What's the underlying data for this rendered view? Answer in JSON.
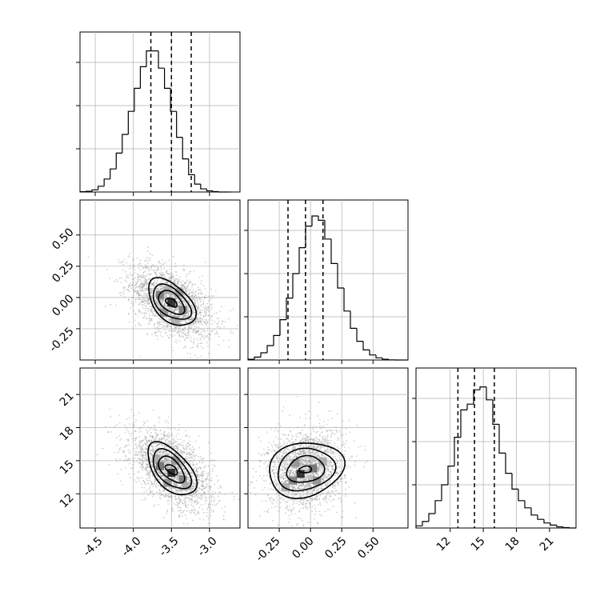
{
  "colors": {
    "ink": "#000000",
    "grid": "#b0b0b0",
    "scatter": "#9a9a9a",
    "background": "#ffffff"
  },
  "chart_data": [
    {
      "type": "histogram",
      "panel": "marginal-1",
      "xlim": [
        -4.7,
        -2.6
      ],
      "bins": {
        "start": -4.7,
        "width": 0.0792,
        "counts": [
          0.002,
          0.005,
          0.015,
          0.04,
          0.09,
          0.16,
          0.27,
          0.4,
          0.56,
          0.72,
          0.87,
          0.98,
          0.98,
          0.86,
          0.72,
          0.56,
          0.38,
          0.23,
          0.12,
          0.055,
          0.022,
          0.008,
          0.003,
          0.0,
          0.0
        ]
      },
      "quantiles": [
        -3.77,
        -3.5,
        -3.24
      ],
      "grid": true
    },
    {
      "type": "histogram",
      "panel": "marginal-2",
      "xlim": [
        -0.5,
        0.78
      ],
      "bins": {
        "start": -0.5,
        "width": 0.0512,
        "counts": [
          0.005,
          0.02,
          0.05,
          0.1,
          0.17,
          0.28,
          0.43,
          0.6,
          0.78,
          0.93,
          1.0,
          0.97,
          0.84,
          0.67,
          0.5,
          0.34,
          0.22,
          0.13,
          0.07,
          0.035,
          0.015,
          0.005,
          0.001,
          0.0,
          0.0
        ]
      },
      "quantiles": [
        -0.18,
        -0.04,
        0.1
      ],
      "grid": true
    },
    {
      "type": "histogram",
      "panel": "marginal-3",
      "xlim": [
        8.9,
        23.4
      ],
      "bins": {
        "start": 8.9,
        "width": 0.58,
        "counts": [
          0.015,
          0.045,
          0.1,
          0.19,
          0.3,
          0.43,
          0.63,
          0.82,
          0.86,
          0.96,
          0.98,
          0.89,
          0.72,
          0.52,
          0.38,
          0.27,
          0.19,
          0.14,
          0.09,
          0.06,
          0.035,
          0.02,
          0.008,
          0.003,
          0.0
        ]
      },
      "quantiles": [
        12.7,
        14.2,
        16.0
      ],
      "grid": true
    },
    {
      "type": "scatter",
      "panel": "joint-x1-x2",
      "xlim": [
        -4.7,
        -2.6
      ],
      "ylim": [
        -0.5,
        0.78
      ],
      "points": {
        "count": 2200,
        "mean": [
          -3.5,
          -0.04
        ],
        "std": [
          0.27,
          0.15
        ],
        "corr": -0.5
      },
      "density": [
        {
          "x": -3.5,
          "y": -0.04,
          "level": 0.9
        },
        {
          "x": -3.65,
          "y": 0.02,
          "level": 0.55
        },
        {
          "x": -3.35,
          "y": -0.1,
          "level": 0.55
        },
        {
          "x": -3.6,
          "y": -0.12,
          "level": 0.45
        },
        {
          "x": -3.4,
          "y": 0.04,
          "level": 0.45
        },
        {
          "x": -3.55,
          "y": 0.06,
          "level": 0.35
        },
        {
          "x": -3.45,
          "y": -0.18,
          "level": 0.35
        }
      ],
      "contours": [
        {
          "level": 1,
          "sx": 0.31,
          "sy": 0.19
        },
        {
          "level": 2,
          "sx": 0.25,
          "sy": 0.14
        },
        {
          "level": 3,
          "sx": 0.17,
          "sy": 0.095
        },
        {
          "level": 4,
          "sx": 0.075,
          "sy": 0.035
        }
      ],
      "grid": true
    },
    {
      "type": "scatter",
      "panel": "joint-x1-x3",
      "xlim": [
        -4.7,
        -2.6
      ],
      "ylim": [
        8.9,
        23.4
      ],
      "points": {
        "count": 2200,
        "mean": [
          -3.5,
          14.2
        ],
        "std": [
          0.27,
          1.8
        ],
        "corr": -0.55
      },
      "density": [
        {
          "x": -3.5,
          "y": 13.9,
          "level": 0.9
        },
        {
          "x": -3.65,
          "y": 14.5,
          "level": 0.6
        },
        {
          "x": -3.35,
          "y": 13.3,
          "level": 0.55
        },
        {
          "x": -3.55,
          "y": 13.0,
          "level": 0.45
        },
        {
          "x": -3.45,
          "y": 15.0,
          "level": 0.45
        },
        {
          "x": -3.7,
          "y": 15.2,
          "level": 0.35
        },
        {
          "x": -3.3,
          "y": 12.7,
          "level": 0.35
        }
      ],
      "contours": [
        {
          "level": 1,
          "sx": 0.32,
          "sy": 2.4
        },
        {
          "level": 2,
          "sx": 0.25,
          "sy": 1.8
        },
        {
          "level": 3,
          "sx": 0.17,
          "sy": 1.2
        },
        {
          "level": 4,
          "sx": 0.08,
          "sy": 0.45
        }
      ],
      "grid": true
    },
    {
      "type": "scatter",
      "panel": "joint-x2-x3",
      "xlim": [
        -0.5,
        0.78
      ],
      "ylim": [
        8.9,
        23.4
      ],
      "points": {
        "count": 2200,
        "mean": [
          -0.04,
          14.2
        ],
        "std": [
          0.15,
          1.8
        ],
        "corr": 0.15
      },
      "density": [
        {
          "x": -0.08,
          "y": 13.8,
          "level": 0.9
        },
        {
          "x": 0.02,
          "y": 14.3,
          "level": 0.6
        },
        {
          "x": -0.14,
          "y": 13.2,
          "level": 0.55
        },
        {
          "x": 0.05,
          "y": 13.2,
          "level": 0.45
        },
        {
          "x": -0.12,
          "y": 14.8,
          "level": 0.45
        },
        {
          "x": 0.1,
          "y": 14.9,
          "level": 0.35
        },
        {
          "x": -0.2,
          "y": 12.6,
          "level": 0.35
        }
      ],
      "contours": [
        {
          "level": 1,
          "sx": 0.3,
          "sy": 2.5
        },
        {
          "level": 2,
          "sx": 0.23,
          "sy": 1.9
        },
        {
          "level": 3,
          "sx": 0.15,
          "sy": 1.2
        },
        {
          "level": 4,
          "sx": 0.05,
          "sy": 0.3
        }
      ],
      "grid": true
    }
  ],
  "ticks": {
    "x1": [
      "-4.5",
      "-4.0",
      "-3.5",
      "-3.0"
    ],
    "x2": [
      "-0.25",
      "0.00",
      "0.25",
      "0.50"
    ],
    "x3": [
      "12",
      "15",
      "18",
      "21"
    ]
  }
}
